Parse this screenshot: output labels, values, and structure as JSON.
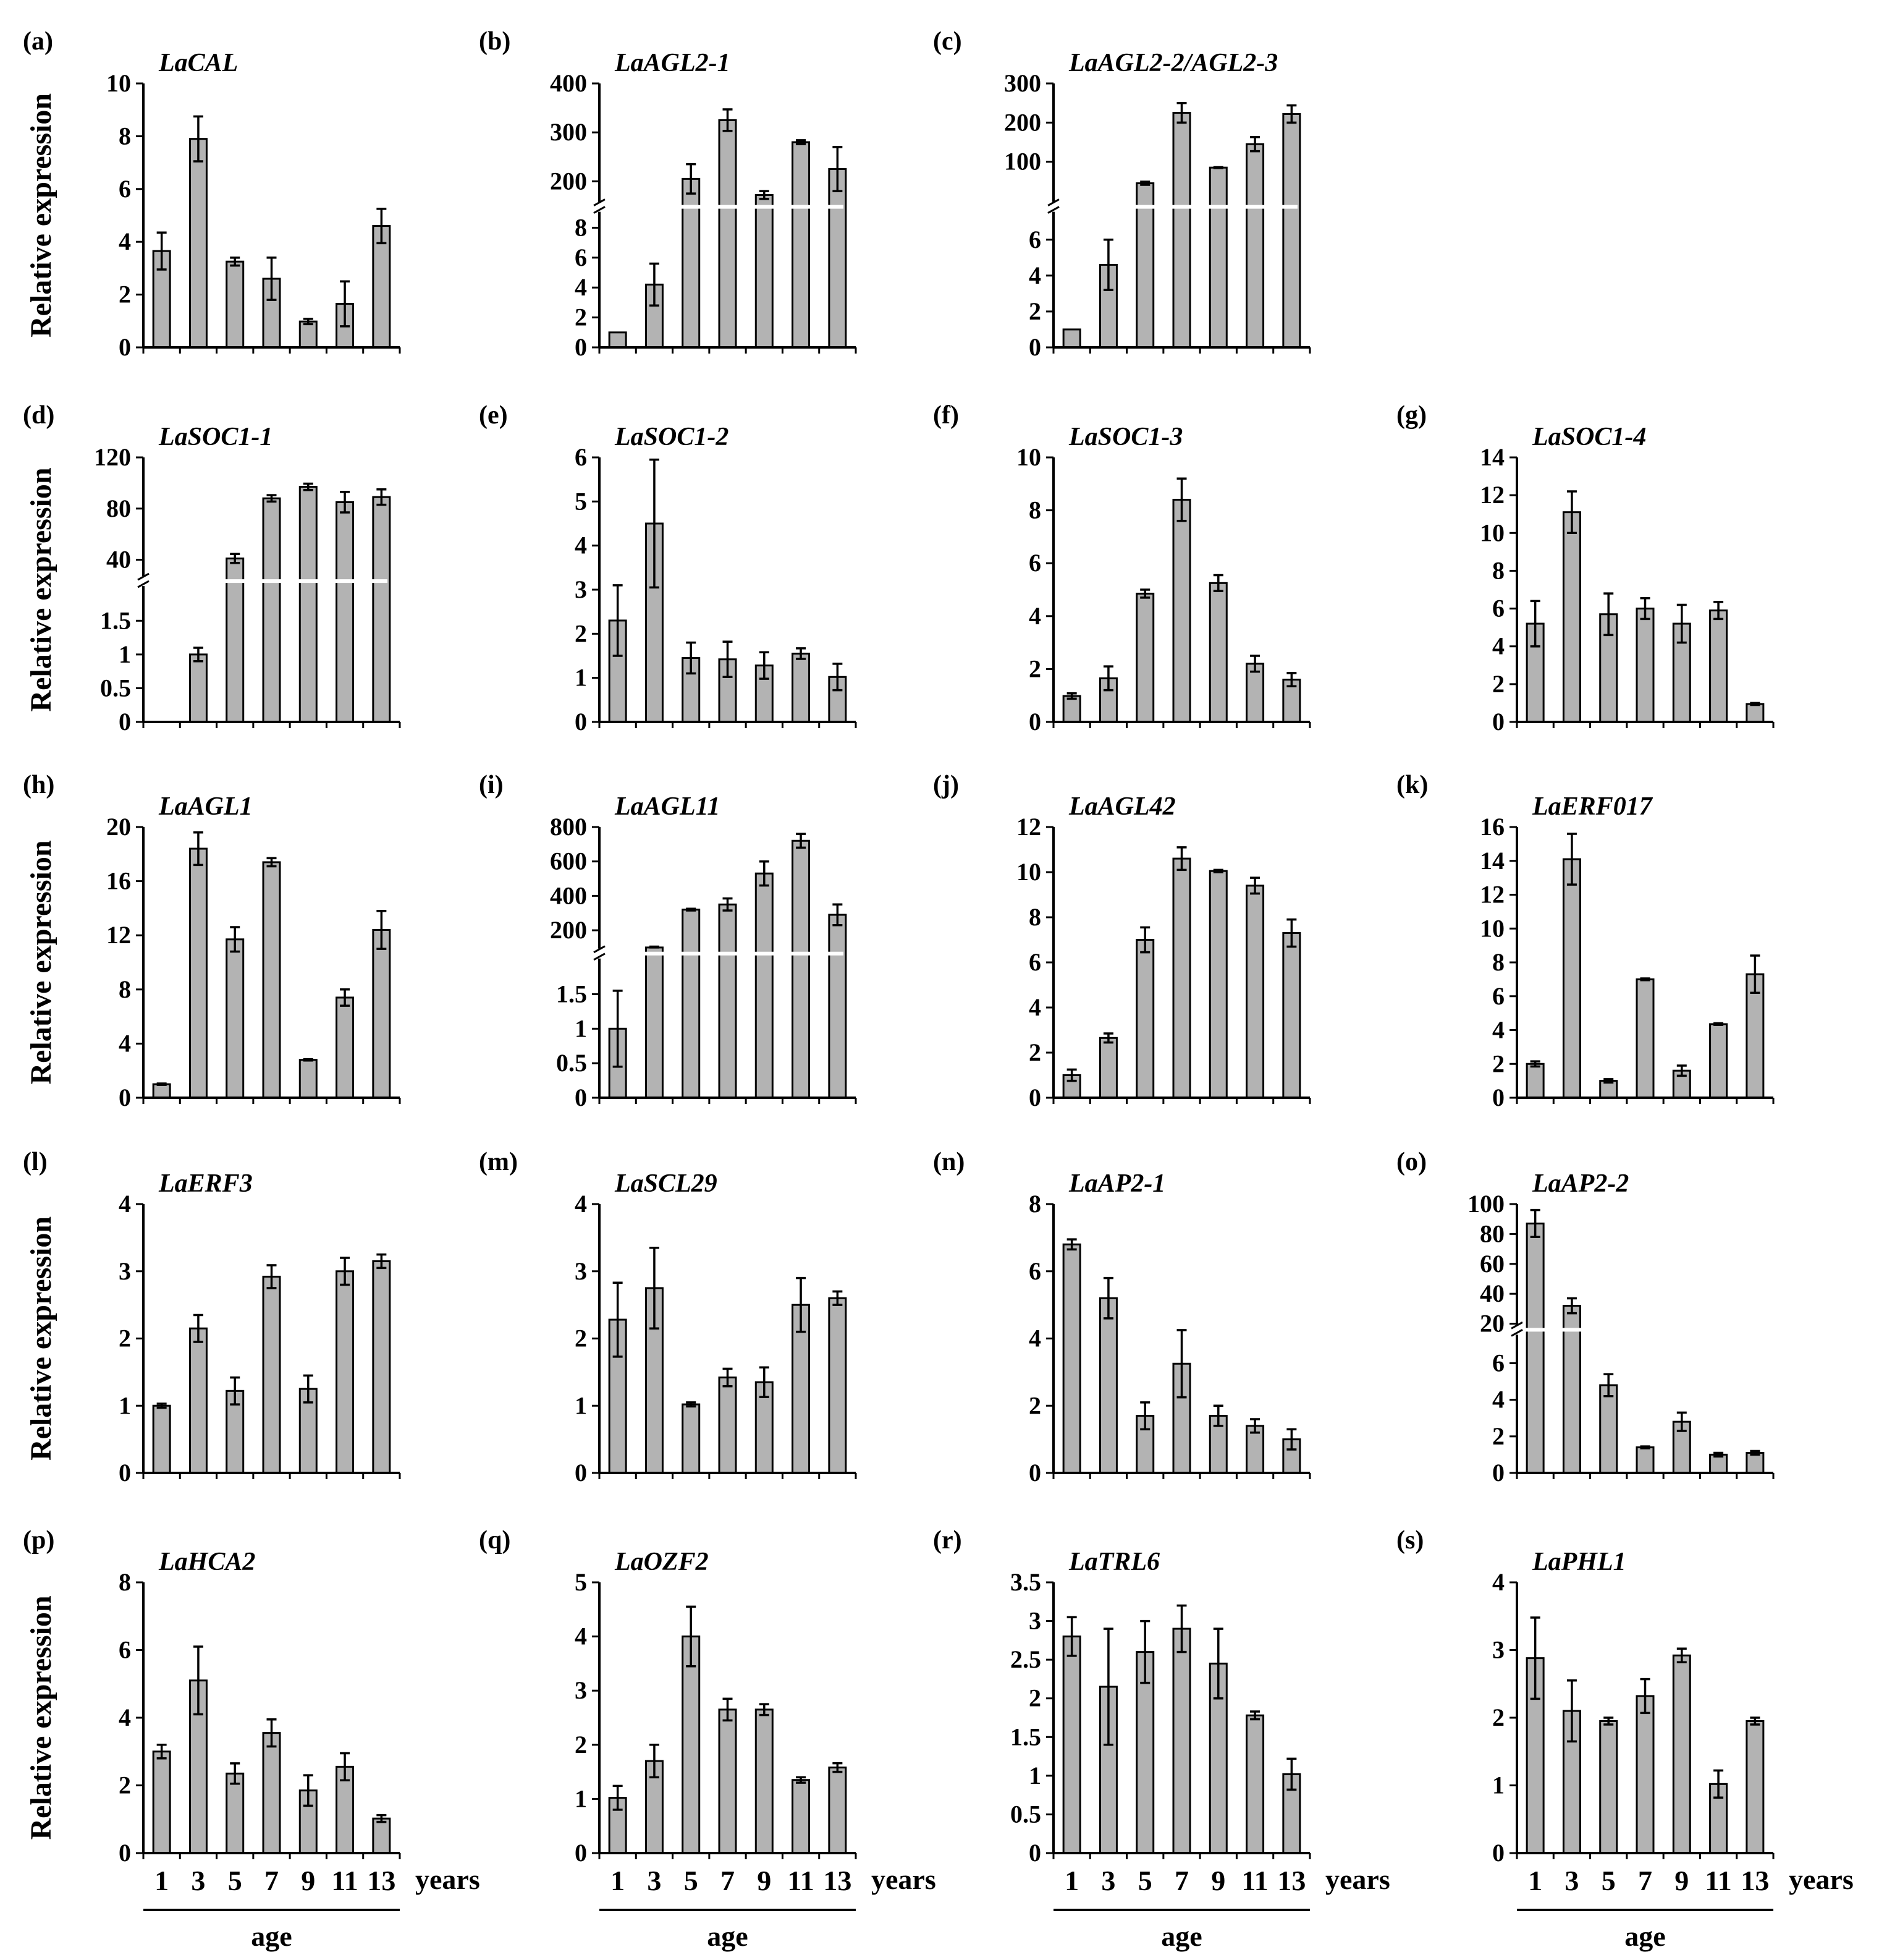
{
  "figure": {
    "ylabel": "Relative expression",
    "x_unit": "years",
    "x_axis_label": "age"
  },
  "chart_data": [
    {
      "label": "(a)",
      "type": "bar",
      "title": "LaCAL",
      "categories": [
        "1",
        "3",
        "5",
        "7",
        "9",
        "11",
        "13"
      ],
      "values": [
        3.65,
        7.9,
        3.25,
        2.6,
        0.98,
        1.65,
        4.6
      ],
      "errors": [
        0.7,
        0.85,
        0.15,
        0.8,
        0.1,
        0.85,
        0.65
      ],
      "ylim": [
        0,
        10
      ],
      "yticks": [
        0,
        2,
        4,
        6,
        8,
        10
      ],
      "ylabel": "Relative expression",
      "xlabel": ""
    },
    {
      "label": "(b)",
      "type": "bar",
      "title": "LaAGL2-1",
      "categories": [
        "1",
        "3",
        "5",
        "7",
        "9",
        "11",
        "13"
      ],
      "values": [
        1,
        4.2,
        205,
        325,
        172,
        280,
        225
      ],
      "errors": [
        0,
        1.4,
        30,
        22,
        8,
        4,
        45
      ],
      "ylim_lower": [
        0,
        9
      ],
      "yticks_lower": [
        0,
        2,
        4,
        6,
        8
      ],
      "ylim_upper": [
        160,
        400
      ],
      "yticks_upper": [
        200,
        300,
        400
      ],
      "ylabel": "",
      "xlabel": ""
    },
    {
      "label": "(c)",
      "type": "bar",
      "title": "LaAGL2-2/AGL2-3",
      "categories": [
        "1",
        "3",
        "5",
        "7",
        "9",
        "11",
        "13"
      ],
      "values": [
        1,
        4.6,
        45,
        225,
        85,
        145,
        222
      ],
      "errors": [
        0,
        1.4,
        4,
        25,
        1,
        18,
        22
      ],
      "ylim_lower": [
        0,
        7.5
      ],
      "yticks_lower": [
        0,
        2,
        4,
        6
      ],
      "ylim_upper": [
        0,
        300
      ],
      "yticks_upper": [
        100,
        200,
        300
      ],
      "ylabel": "",
      "xlabel": ""
    },
    {
      "label": "(d)",
      "type": "bar",
      "title": "LaSOC1-1",
      "categories": [
        "1",
        "3",
        "5",
        "7",
        "9",
        "11",
        "13"
      ],
      "values": [
        0,
        1,
        41,
        88,
        97,
        85,
        89
      ],
      "errors": [
        0,
        0.1,
        3.5,
        2.5,
        2.5,
        8,
        6
      ],
      "ylim_lower": [
        0,
        2
      ],
      "yticks_lower": [
        0,
        0.5,
        1.0,
        1.5
      ],
      "ylim_upper": [
        28,
        120
      ],
      "yticks_upper": [
        40,
        80,
        120
      ],
      "ylabel": "Relative expression",
      "xlabel": ""
    },
    {
      "label": "(e)",
      "type": "bar",
      "title": "LaSOC1-2",
      "categories": [
        "1",
        "3",
        "5",
        "7",
        "9",
        "11",
        "13"
      ],
      "values": [
        2.3,
        4.5,
        1.45,
        1.42,
        1.28,
        1.55,
        1.02
      ],
      "errors": [
        0.8,
        1.45,
        0.35,
        0.4,
        0.3,
        0.12,
        0.3
      ],
      "ylim": [
        0,
        6
      ],
      "yticks": [
        0,
        1,
        2,
        3,
        4,
        5,
        6
      ],
      "ylabel": "",
      "xlabel": ""
    },
    {
      "label": "(f)",
      "type": "bar",
      "title": "LaSOC1-3",
      "categories": [
        "1",
        "3",
        "5",
        "7",
        "9",
        "11",
        "13"
      ],
      "values": [
        0.98,
        1.65,
        4.85,
        8.4,
        5.25,
        2.2,
        1.6
      ],
      "errors": [
        0.1,
        0.45,
        0.15,
        0.8,
        0.3,
        0.3,
        0.25
      ],
      "ylim": [
        0,
        10
      ],
      "yticks": [
        0,
        2,
        4,
        6,
        8,
        10
      ],
      "ylabel": "",
      "xlabel": ""
    },
    {
      "label": "(g)",
      "type": "bar",
      "title": "LaSOC1-4",
      "categories": [
        "1",
        "3",
        "5",
        "7",
        "9",
        "11",
        "13"
      ],
      "values": [
        5.2,
        11.1,
        5.7,
        6.0,
        5.2,
        5.9,
        0.95
      ],
      "errors": [
        1.2,
        1.1,
        1.1,
        0.55,
        1.0,
        0.45,
        0.05
      ],
      "ylim": [
        0,
        14
      ],
      "yticks": [
        0,
        2,
        4,
        6,
        8,
        10,
        12,
        14
      ],
      "ylabel": "",
      "xlabel": ""
    },
    {
      "label": "(h)",
      "type": "bar",
      "title": "LaAGL1",
      "categories": [
        "1",
        "3",
        "5",
        "7",
        "9",
        "11",
        "13"
      ],
      "values": [
        1,
        18.4,
        11.7,
        17.4,
        2.8,
        7.4,
        12.4
      ],
      "errors": [
        0.05,
        1.2,
        0.9,
        0.3,
        0.05,
        0.6,
        1.4
      ],
      "ylim": [
        0,
        20
      ],
      "yticks": [
        0,
        4,
        8,
        12,
        16,
        20
      ],
      "ylabel": "Relative expression",
      "xlabel": ""
    },
    {
      "label": "(i)",
      "type": "bar",
      "title": "LaAGL11",
      "categories": [
        "1",
        "3",
        "5",
        "7",
        "9",
        "11",
        "13"
      ],
      "values": [
        1.0,
        100,
        320,
        350,
        530,
        720,
        290
      ],
      "errors": [
        0.55,
        5,
        5,
        35,
        70,
        40,
        60
      ],
      "ylim_lower": [
        0,
        2
      ],
      "yticks_lower": [
        0,
        0.5,
        1.0,
        1.5
      ],
      "ylim_upper": [
        100,
        800
      ],
      "yticks_upper": [
        200,
        400,
        600,
        800
      ],
      "ylabel": "",
      "xlabel": ""
    },
    {
      "label": "(j)",
      "type": "bar",
      "title": "LaAGL42",
      "categories": [
        "1",
        "3",
        "5",
        "7",
        "9",
        "11",
        "13"
      ],
      "values": [
        1,
        2.65,
        7.0,
        10.6,
        10.05,
        9.4,
        7.3
      ],
      "errors": [
        0.25,
        0.2,
        0.55,
        0.5,
        0.05,
        0.35,
        0.6
      ],
      "ylim": [
        0,
        12
      ],
      "yticks": [
        0,
        2,
        4,
        6,
        8,
        10,
        12
      ],
      "ylabel": "",
      "xlabel": ""
    },
    {
      "label": "(k)",
      "type": "bar",
      "title": "LaERF017",
      "categories": [
        "1",
        "3",
        "5",
        "7",
        "9",
        "11",
        "13"
      ],
      "values": [
        2,
        14.1,
        1.0,
        7.0,
        1.6,
        4.35,
        7.3
      ],
      "errors": [
        0.15,
        1.5,
        0.1,
        0.05,
        0.3,
        0.05,
        1.1
      ],
      "ylim": [
        0,
        16
      ],
      "yticks": [
        0,
        2,
        4,
        6,
        8,
        10,
        12,
        14,
        16
      ],
      "ylabel": "",
      "xlabel": ""
    },
    {
      "label": "(l)",
      "type": "bar",
      "title": "LaERF3",
      "categories": [
        "1",
        "3",
        "5",
        "7",
        "9",
        "11",
        "13"
      ],
      "values": [
        1,
        2.15,
        1.22,
        2.92,
        1.25,
        3.0,
        3.15
      ],
      "errors": [
        0.03,
        0.2,
        0.2,
        0.17,
        0.2,
        0.2,
        0.1
      ],
      "ylim": [
        0,
        4
      ],
      "yticks": [
        0,
        1,
        2,
        3,
        4
      ],
      "ylabel": "Relative expression",
      "xlabel": ""
    },
    {
      "label": "(m)",
      "type": "bar",
      "title": "LaSCL29",
      "categories": [
        "1",
        "3",
        "5",
        "7",
        "9",
        "11",
        "13"
      ],
      "values": [
        2.28,
        2.75,
        1.02,
        1.42,
        1.35,
        2.5,
        2.6
      ],
      "errors": [
        0.55,
        0.6,
        0.03,
        0.13,
        0.22,
        0.4,
        0.1
      ],
      "ylim": [
        0,
        4
      ],
      "yticks": [
        0,
        1,
        2,
        3,
        4
      ],
      "ylabel": "",
      "xlabel": ""
    },
    {
      "label": "(n)",
      "type": "bar",
      "title": "LaAP2-1",
      "categories": [
        "1",
        "3",
        "5",
        "7",
        "9",
        "11",
        "13"
      ],
      "values": [
        6.8,
        5.2,
        1.7,
        3.25,
        1.7,
        1.4,
        1.0
      ],
      "errors": [
        0.15,
        0.6,
        0.4,
        1.0,
        0.3,
        0.2,
        0.3
      ],
      "ylim": [
        0,
        8
      ],
      "yticks": [
        0,
        2,
        4,
        6,
        8
      ],
      "ylabel": "",
      "xlabel": ""
    },
    {
      "label": "(o)",
      "type": "bar",
      "title": "LaAP2-2",
      "categories": [
        "1",
        "3",
        "5",
        "7",
        "9",
        "11",
        "13"
      ],
      "values": [
        87,
        32,
        4.8,
        1.4,
        2.8,
        1.0,
        1.1
      ],
      "errors": [
        9,
        5,
        0.6,
        0.05,
        0.5,
        0.1,
        0.1
      ],
      "ylim_lower": [
        0,
        7.5
      ],
      "yticks_lower": [
        0,
        2,
        4,
        6
      ],
      "ylim_upper": [
        20,
        100
      ],
      "yticks_upper": [
        20,
        40,
        60,
        80,
        100
      ],
      "ylabel": "",
      "xlabel": ""
    },
    {
      "label": "(p)",
      "type": "bar",
      "title": "LaHCA2",
      "categories": [
        "1",
        "3",
        "5",
        "7",
        "9",
        "11",
        "13"
      ],
      "values": [
        3.0,
        5.1,
        2.35,
        3.55,
        1.85,
        2.55,
        1.02
      ],
      "errors": [
        0.2,
        1.0,
        0.3,
        0.4,
        0.45,
        0.4,
        0.1
      ],
      "ylim": [
        0,
        8
      ],
      "yticks": [
        0,
        2,
        4,
        6,
        8
      ],
      "ylabel": "Relative expression",
      "xlabel": "age"
    },
    {
      "label": "(q)",
      "type": "bar",
      "title": "LaOZF2",
      "categories": [
        "1",
        "3",
        "5",
        "7",
        "9",
        "11",
        "13"
      ],
      "values": [
        1.02,
        1.7,
        4.0,
        2.65,
        2.65,
        1.35,
        1.58
      ],
      "errors": [
        0.22,
        0.3,
        0.55,
        0.2,
        0.1,
        0.05,
        0.08
      ],
      "ylim": [
        0,
        5
      ],
      "yticks": [
        0,
        1,
        2,
        3,
        4,
        5
      ],
      "ylabel": "",
      "xlabel": "age"
    },
    {
      "label": "(r)",
      "type": "bar",
      "title": "LaTRL6",
      "categories": [
        "1",
        "3",
        "5",
        "7",
        "9",
        "11",
        "13"
      ],
      "values": [
        2.8,
        2.15,
        2.6,
        2.9,
        2.45,
        1.78,
        1.02
      ],
      "errors": [
        0.25,
        0.75,
        0.4,
        0.3,
        0.45,
        0.05,
        0.2
      ],
      "ylim": [
        0,
        3.5
      ],
      "yticks": [
        0,
        0.5,
        1.0,
        1.5,
        2.0,
        2.5,
        3.0,
        3.5
      ],
      "ylabel": "",
      "xlabel": "age"
    },
    {
      "label": "(s)",
      "type": "bar",
      "title": "LaPHL1",
      "categories": [
        "1",
        "3",
        "5",
        "7",
        "9",
        "11",
        "13"
      ],
      "values": [
        2.88,
        2.1,
        1.95,
        2.32,
        2.92,
        1.02,
        1.95
      ],
      "errors": [
        0.6,
        0.45,
        0.05,
        0.25,
        0.1,
        0.2,
        0.05
      ],
      "ylim": [
        0,
        4
      ],
      "yticks": [
        0,
        1,
        2,
        3,
        4
      ],
      "ylabel": "",
      "xlabel": "age"
    }
  ]
}
